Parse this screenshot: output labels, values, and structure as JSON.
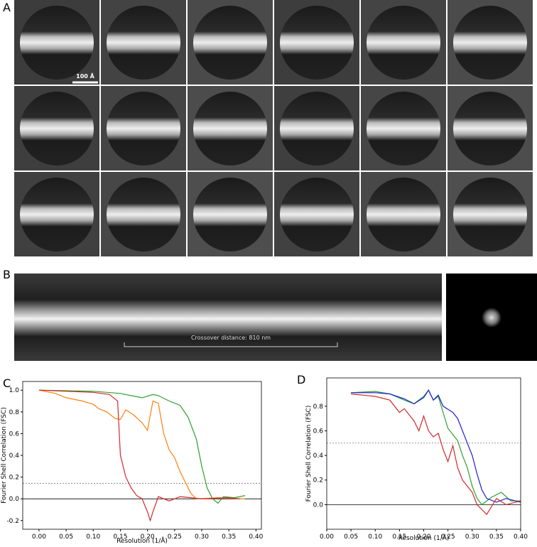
{
  "panels": {
    "a": {
      "label": "A",
      "scale_bar": "100 Å"
    },
    "b": {
      "label": "B",
      "annotation": "Crossover distance: 810 nm"
    }
  },
  "chart_data": [
    {
      "type": "line",
      "panel_label": "C",
      "xlabel": "Resolution (1/Å)",
      "ylabel": "Fourier Shell Correlation (FSC)",
      "xlim": [
        -0.03,
        0.41
      ],
      "ylim": [
        -0.28,
        1.08
      ],
      "xticks": [
        {
          "value": 0,
          "label": "0.00"
        },
        0.05,
        {
          "value": 0.1,
          "label": "0.10"
        },
        0.15,
        {
          "value": 0.2,
          "label": "0.20"
        },
        0.25,
        {
          "value": 0.3,
          "label": "0.30"
        },
        0.35,
        {
          "value": 0.4,
          "label": "0.40"
        }
      ],
      "yticks": [
        -0.2,
        {
          "value": 0,
          "label": "0.0"
        },
        0.2,
        0.4,
        0.6,
        0.8,
        {
          "value": 1,
          "label": "1.0"
        }
      ],
      "hlines": [
        {
          "value": 0.143,
          "style": "dotted"
        },
        {
          "value": 0,
          "style": "solid"
        }
      ],
      "series": [
        {
          "color": "#2ca02c",
          "x": [
            0,
            0.1,
            0.15,
            0.16,
            0.18,
            0.19,
            0.21,
            0.22,
            0.24,
            0.26,
            0.275,
            0.29,
            0.3,
            0.31,
            0.32,
            0.33,
            0.34,
            0.36,
            0.38
          ],
          "values": [
            1.0,
            0.99,
            0.97,
            0.96,
            0.94,
            0.93,
            0.96,
            0.95,
            0.9,
            0.86,
            0.75,
            0.55,
            0.3,
            0.1,
            0.0,
            -0.04,
            0.02,
            0.01,
            0.03
          ]
        },
        {
          "color": "#ff7f0e",
          "x": [
            0,
            0.03,
            0.05,
            0.08,
            0.1,
            0.11,
            0.125,
            0.14,
            0.15,
            0.16,
            0.175,
            0.19,
            0.2,
            0.21,
            0.22,
            0.23,
            0.24,
            0.25,
            0.26,
            0.27,
            0.28,
            0.29,
            0.33,
            0.38
          ],
          "values": [
            1.0,
            0.97,
            0.93,
            0.9,
            0.87,
            0.83,
            0.8,
            0.74,
            0.73,
            0.82,
            0.77,
            0.7,
            0.63,
            0.9,
            0.88,
            0.6,
            0.45,
            0.38,
            0.25,
            0.15,
            0.05,
            0.0,
            0.01,
            0.0
          ]
        },
        {
          "color": "#d62728",
          "x": [
            0,
            0.05,
            0.1,
            0.13,
            0.145,
            0.15,
            0.16,
            0.17,
            0.18,
            0.19,
            0.2,
            0.205,
            0.21,
            0.22,
            0.24,
            0.26,
            0.3,
            0.35,
            0.37
          ],
          "values": [
            1.0,
            0.99,
            0.98,
            0.96,
            0.9,
            0.4,
            0.2,
            0.1,
            0.03,
            0.0,
            -0.12,
            -0.2,
            -0.12,
            0.02,
            -0.02,
            0.02,
            0.0,
            0.01,
            0.0
          ]
        }
      ]
    },
    {
      "type": "line",
      "panel_label": "D",
      "xlabel": "Resolution (1/Å)",
      "ylabel": "Fourier Shell Correlation (FSC)",
      "xlim": [
        0,
        0.4
      ],
      "ylim": [
        -0.2,
        1.03
      ],
      "xticks": [
        {
          "value": 0,
          "label": "0.00"
        },
        0.05,
        {
          "value": 0.1,
          "label": "0.10"
        },
        0.15,
        {
          "value": 0.2,
          "label": "0.20"
        },
        0.25,
        {
          "value": 0.3,
          "label": "0.30"
        },
        0.35,
        {
          "value": 0.4,
          "label": "0.40"
        }
      ],
      "yticks": [
        {
          "value": 0,
          "label": "0.0"
        },
        0.2,
        0.4,
        0.6,
        0.8
      ],
      "hlines": [
        {
          "value": 0.5,
          "style": "dotted"
        },
        {
          "value": 0,
          "style": "solid"
        }
      ],
      "series": [
        {
          "color": "#2ca02c",
          "x": [
            0.05,
            0.1,
            0.13,
            0.16,
            0.18,
            0.2,
            0.21,
            0.22,
            0.23,
            0.24,
            0.25,
            0.27,
            0.28,
            0.29,
            0.3,
            0.31,
            0.32,
            0.34,
            0.36,
            0.38,
            0.4
          ],
          "values": [
            0.91,
            0.92,
            0.9,
            0.85,
            0.82,
            0.88,
            0.93,
            0.85,
            0.88,
            0.75,
            0.62,
            0.52,
            0.4,
            0.3,
            0.15,
            0.05,
            0.0,
            0.06,
            0.1,
            0.03,
            0.03
          ]
        },
        {
          "color": "#1f1fd6",
          "x": [
            0.05,
            0.1,
            0.13,
            0.16,
            0.18,
            0.2,
            0.21,
            0.22,
            0.23,
            0.24,
            0.26,
            0.27,
            0.28,
            0.29,
            0.3,
            0.31,
            0.32,
            0.33,
            0.35,
            0.37,
            0.4
          ],
          "values": [
            0.91,
            0.91,
            0.9,
            0.86,
            0.82,
            0.87,
            0.93,
            0.85,
            0.89,
            0.8,
            0.75,
            0.7,
            0.6,
            0.5,
            0.4,
            0.25,
            0.12,
            0.05,
            0.02,
            0.05,
            0.02
          ]
        },
        {
          "color": "#d62728",
          "x": [
            0.05,
            0.1,
            0.13,
            0.15,
            0.16,
            0.18,
            0.19,
            0.2,
            0.21,
            0.22,
            0.23,
            0.24,
            0.25,
            0.26,
            0.27,
            0.28,
            0.29,
            0.3,
            0.31,
            0.33,
            0.35,
            0.37,
            0.4
          ],
          "values": [
            0.9,
            0.88,
            0.85,
            0.75,
            0.78,
            0.68,
            0.6,
            0.72,
            0.6,
            0.55,
            0.58,
            0.45,
            0.35,
            0.48,
            0.3,
            0.2,
            0.15,
            0.1,
            0.0,
            -0.08,
            0.05,
            0.0,
            0.03
          ]
        }
      ]
    }
  ]
}
